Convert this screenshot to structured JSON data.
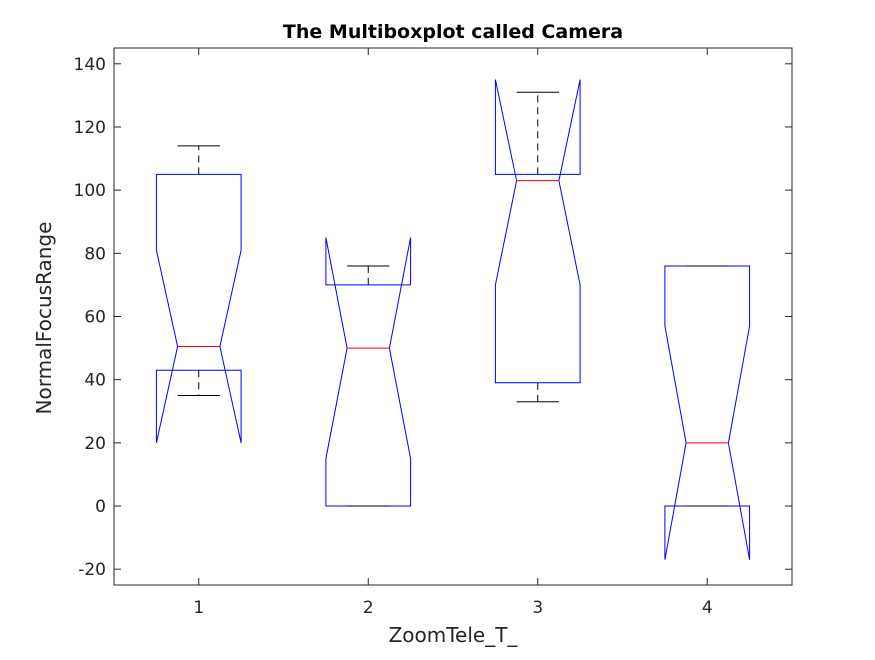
{
  "chart_data": {
    "type": "boxplot",
    "title": "The Multiboxplot called Camera",
    "xlabel": "ZoomTele_T_",
    "ylabel": "NormalFocusRange",
    "ylim": [
      -25,
      145
    ],
    "xlim": [
      0.5,
      4.5
    ],
    "yticks": [
      -20,
      0,
      20,
      40,
      60,
      80,
      100,
      120,
      140
    ],
    "xticks": [
      1,
      2,
      3,
      4
    ],
    "categories": [
      "1",
      "2",
      "3",
      "4"
    ],
    "grid": false,
    "box_color": "#0000ff",
    "median_color": "#ff0000",
    "whisker_color": "#000000",
    "boxes": [
      {
        "category": "1",
        "q1": 43,
        "median": 50.5,
        "q3": 105,
        "notch_low": 20,
        "notch_high": 81,
        "whisker_low": 35,
        "whisker_high": 114
      },
      {
        "category": "2",
        "q1": 0,
        "median": 50,
        "q3": 70,
        "notch_low": 15,
        "notch_high": 85,
        "whisker_low": 0,
        "whisker_high": 76
      },
      {
        "category": "3",
        "q1": 39,
        "median": 103,
        "q3": 105,
        "notch_low": 70,
        "notch_high": 135,
        "whisker_low": 33,
        "whisker_high": 131
      },
      {
        "category": "4",
        "q1": 0,
        "median": 20,
        "q3": 76,
        "notch_low": -17,
        "notch_high": 57,
        "whisker_low": 0,
        "whisker_high": 76
      }
    ]
  }
}
